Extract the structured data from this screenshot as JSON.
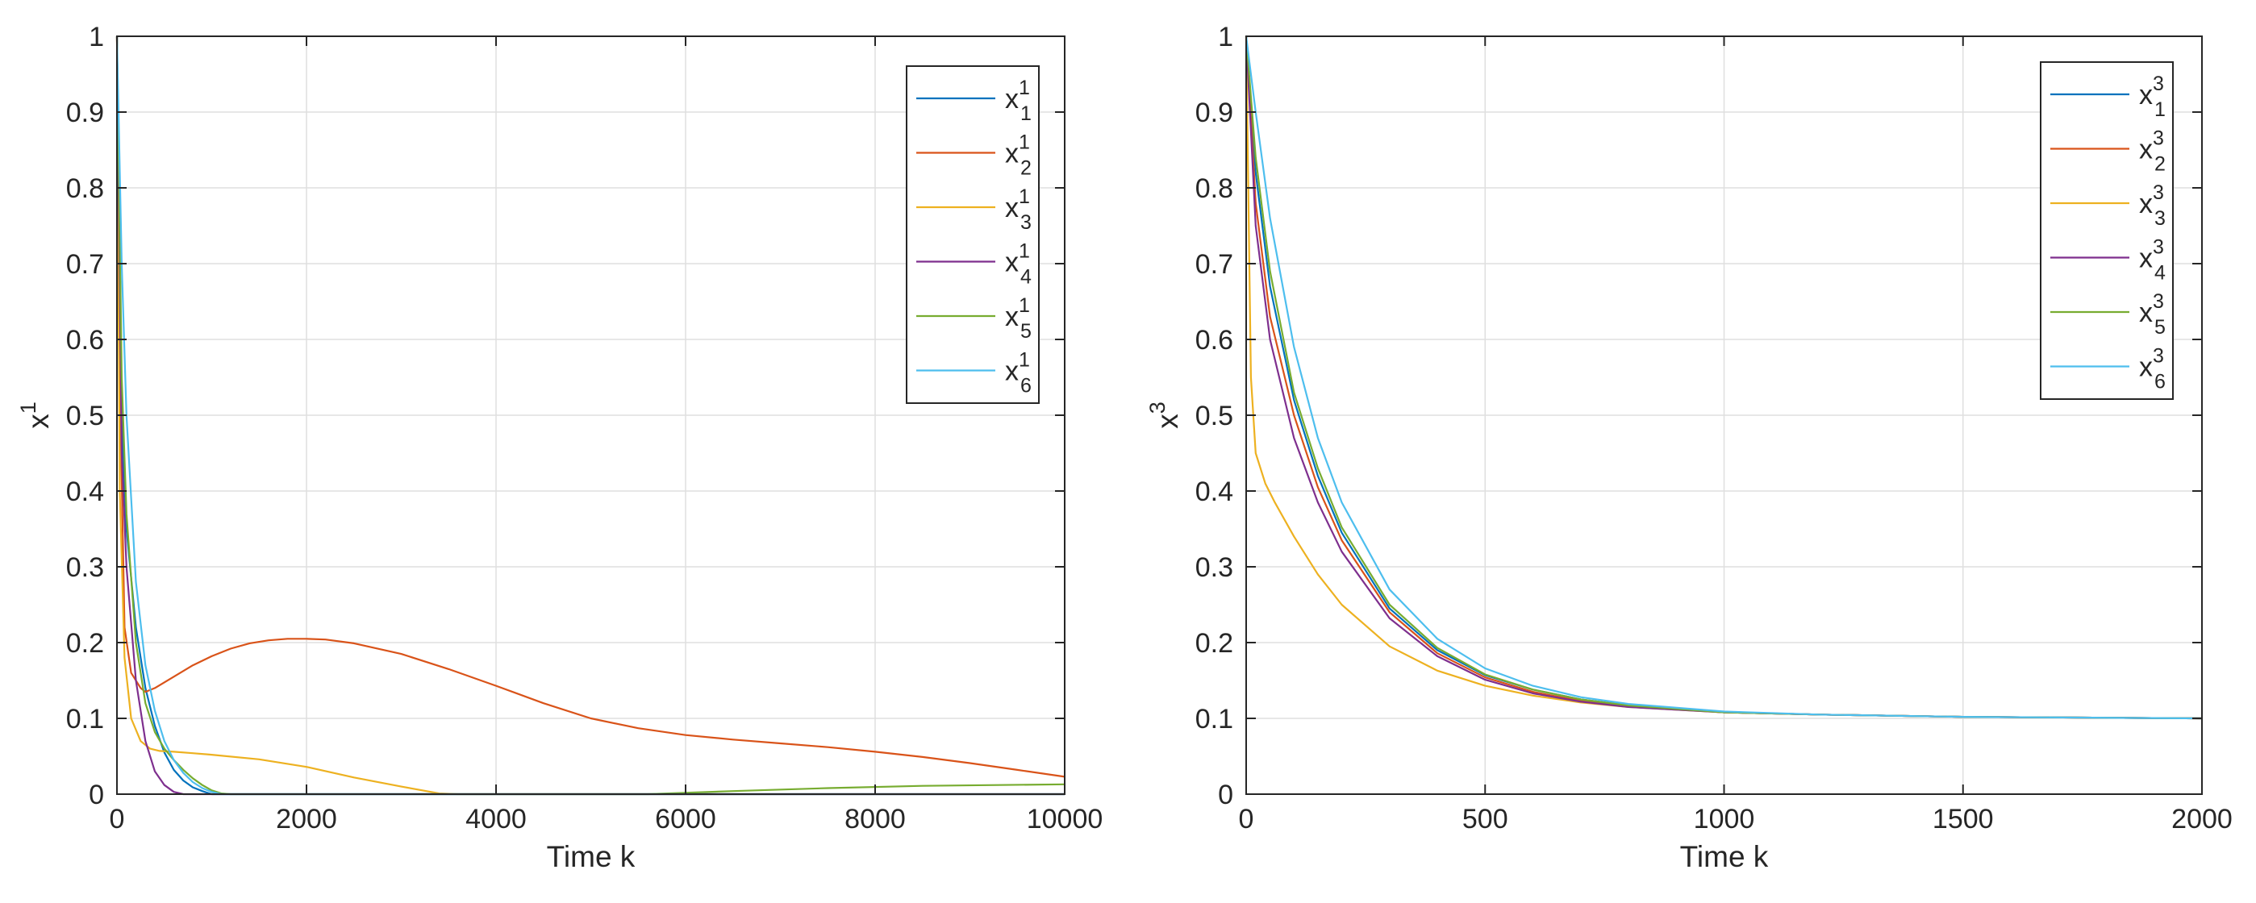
{
  "chart_data": [
    {
      "type": "line",
      "xlabel": "Time k",
      "ylabel": {
        "base": "x",
        "sup": "1"
      },
      "xlim": [
        0,
        10000
      ],
      "ylim": [
        0,
        1
      ],
      "xticks": [
        0,
        2000,
        4000,
        6000,
        8000,
        10000
      ],
      "yticks": [
        0,
        0.1,
        0.2,
        0.3,
        0.4,
        0.5,
        0.6,
        0.7,
        0.8,
        0.9,
        1
      ],
      "grid": true,
      "legend_position": "top-right",
      "series": [
        {
          "name": "x_1^1",
          "base": "x",
          "sup": "1",
          "sub": "1",
          "color": "#0072BD",
          "x": [
            0,
            50,
            100,
            200,
            300,
            400,
            500,
            600,
            700,
            800,
            900,
            1000,
            2000,
            10000
          ],
          "y": [
            1.0,
            0.5,
            0.35,
            0.22,
            0.14,
            0.09,
            0.055,
            0.032,
            0.018,
            0.009,
            0.004,
            0.0,
            0.0,
            0.0
          ]
        },
        {
          "name": "x_2^1",
          "base": "x",
          "sup": "1",
          "sub": "2",
          "color": "#D95319",
          "x": [
            0,
            30,
            80,
            150,
            250,
            300,
            400,
            600,
            800,
            1000,
            1200,
            1400,
            1600,
            1800,
            2000,
            2200,
            2500,
            3000,
            3500,
            4000,
            4500,
            5000,
            5500,
            6000,
            6500,
            7000,
            7500,
            8000,
            8500,
            9000,
            9500,
            10000
          ],
          "y": [
            1.0,
            0.55,
            0.22,
            0.16,
            0.14,
            0.135,
            0.14,
            0.155,
            0.17,
            0.182,
            0.192,
            0.199,
            0.203,
            0.205,
            0.205,
            0.204,
            0.199,
            0.185,
            0.165,
            0.143,
            0.12,
            0.1,
            0.087,
            0.078,
            0.072,
            0.067,
            0.062,
            0.056,
            0.049,
            0.041,
            0.032,
            0.023
          ]
        },
        {
          "name": "x_3^1",
          "base": "x",
          "sup": "1",
          "sub": "3",
          "color": "#EDB120",
          "x": [
            0,
            30,
            80,
            150,
            250,
            350,
            450,
            600,
            800,
            1000,
            1500,
            2000,
            2500,
            3000,
            3400,
            3600,
            10000
          ],
          "y": [
            1.0,
            0.4,
            0.18,
            0.1,
            0.07,
            0.06,
            0.057,
            0.056,
            0.054,
            0.052,
            0.046,
            0.036,
            0.022,
            0.01,
            0.001,
            0.0,
            0.0
          ]
        },
        {
          "name": "x_4^1",
          "base": "x",
          "sup": "1",
          "sub": "4",
          "color": "#7E2F8E",
          "x": [
            0,
            50,
            100,
            200,
            300,
            400,
            500,
            600,
            700,
            800,
            10000
          ],
          "y": [
            1.0,
            0.45,
            0.3,
            0.15,
            0.07,
            0.03,
            0.012,
            0.003,
            0.0,
            0.0,
            0.0
          ]
        },
        {
          "name": "x_5^1",
          "base": "x",
          "sup": "1",
          "sub": "5",
          "color": "#77AC30",
          "x": [
            0,
            50,
            100,
            200,
            300,
            400,
            500,
            600,
            700,
            800,
            900,
            1000,
            1100,
            1200,
            5600,
            6500,
            7500,
            8500,
            10000
          ],
          "y": [
            1.0,
            0.55,
            0.37,
            0.2,
            0.12,
            0.082,
            0.06,
            0.045,
            0.032,
            0.021,
            0.012,
            0.005,
            0.001,
            0.0,
            0.0,
            0.004,
            0.008,
            0.011,
            0.013
          ]
        },
        {
          "name": "x_6^1",
          "base": "x",
          "sup": "1",
          "sub": "6",
          "color": "#4DBEEE",
          "x": [
            0,
            50,
            100,
            200,
            300,
            400,
            500,
            600,
            700,
            800,
            900,
            1000,
            1100,
            1200,
            10000
          ],
          "y": [
            1.0,
            0.7,
            0.5,
            0.28,
            0.17,
            0.11,
            0.07,
            0.045,
            0.028,
            0.016,
            0.008,
            0.003,
            0.0,
            0.0,
            0.0
          ]
        }
      ]
    },
    {
      "type": "line",
      "xlabel": "Time k",
      "ylabel": {
        "base": "x",
        "sup": "3"
      },
      "xlim": [
        0,
        2000
      ],
      "ylim": [
        0,
        1
      ],
      "xticks": [
        0,
        500,
        1000,
        1500,
        2000
      ],
      "yticks": [
        0,
        0.1,
        0.2,
        0.3,
        0.4,
        0.5,
        0.6,
        0.7,
        0.8,
        0.9,
        1
      ],
      "grid": true,
      "legend_position": "top-right",
      "series": [
        {
          "name": "x_1^3",
          "base": "x",
          "sup": "3",
          "sub": "1",
          "color": "#0072BD",
          "x": [
            0,
            20,
            50,
            100,
            150,
            200,
            300,
            400,
            500,
            600,
            700,
            800,
            1000,
            1200,
            1500,
            2000
          ],
          "y": [
            1.0,
            0.82,
            0.67,
            0.52,
            0.42,
            0.345,
            0.245,
            0.19,
            0.157,
            0.138,
            0.125,
            0.117,
            0.108,
            0.105,
            0.102,
            0.1
          ]
        },
        {
          "name": "x_2^3",
          "base": "x",
          "sup": "3",
          "sub": "2",
          "color": "#D95319",
          "x": [
            0,
            20,
            50,
            100,
            150,
            200,
            300,
            400,
            500,
            600,
            700,
            800,
            1000,
            1200,
            1500,
            2000
          ],
          "y": [
            1.0,
            0.78,
            0.63,
            0.5,
            0.405,
            0.335,
            0.24,
            0.186,
            0.154,
            0.135,
            0.123,
            0.116,
            0.108,
            0.105,
            0.102,
            0.1
          ]
        },
        {
          "name": "x_3^3",
          "base": "x",
          "sup": "3",
          "sub": "3",
          "color": "#EDB120",
          "x": [
            0,
            10,
            20,
            40,
            60,
            100,
            150,
            200,
            300,
            400,
            500,
            600,
            700,
            800,
            1000,
            1200,
            1500,
            2000
          ],
          "y": [
            1.0,
            0.55,
            0.45,
            0.41,
            0.385,
            0.34,
            0.29,
            0.25,
            0.195,
            0.163,
            0.143,
            0.13,
            0.121,
            0.115,
            0.108,
            0.105,
            0.102,
            0.1
          ]
        },
        {
          "name": "x_4^3",
          "base": "x",
          "sup": "3",
          "sub": "4",
          "color": "#7E2F8E",
          "x": [
            0,
            20,
            50,
            100,
            150,
            200,
            300,
            400,
            500,
            600,
            700,
            800,
            1000,
            1200,
            1500,
            2000
          ],
          "y": [
            1.0,
            0.75,
            0.6,
            0.47,
            0.385,
            0.32,
            0.232,
            0.182,
            0.151,
            0.133,
            0.122,
            0.115,
            0.108,
            0.105,
            0.102,
            0.1
          ]
        },
        {
          "name": "x_5^3",
          "base": "x",
          "sup": "3",
          "sub": "5",
          "color": "#77AC30",
          "x": [
            0,
            20,
            50,
            100,
            150,
            200,
            300,
            400,
            500,
            600,
            700,
            800,
            1000,
            1200,
            1500,
            2000
          ],
          "y": [
            1.0,
            0.84,
            0.69,
            0.53,
            0.43,
            0.352,
            0.25,
            0.193,
            0.158,
            0.138,
            0.125,
            0.117,
            0.108,
            0.105,
            0.102,
            0.1
          ]
        },
        {
          "name": "x_6^3",
          "base": "x",
          "sup": "3",
          "sub": "6",
          "color": "#4DBEEE",
          "x": [
            0,
            20,
            50,
            100,
            150,
            200,
            300,
            400,
            500,
            600,
            700,
            800,
            1000,
            1200,
            1500,
            2000
          ],
          "y": [
            1.0,
            0.9,
            0.76,
            0.59,
            0.47,
            0.385,
            0.27,
            0.205,
            0.166,
            0.143,
            0.128,
            0.119,
            0.109,
            0.105,
            0.102,
            0.1
          ]
        }
      ]
    }
  ]
}
